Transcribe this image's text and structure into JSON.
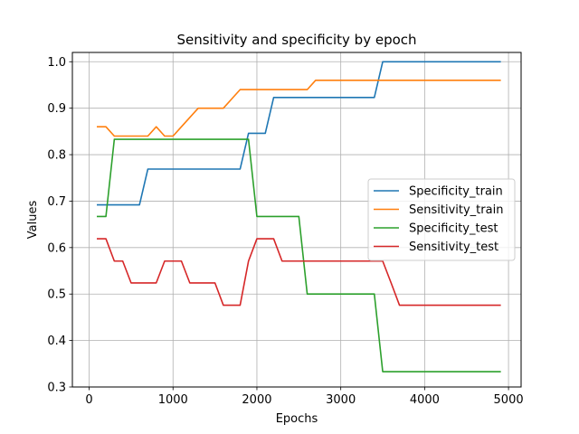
{
  "chart_data": {
    "type": "line",
    "title": "Sensitivity and specificity by epoch",
    "xlabel": "Epochs",
    "ylabel": "Values",
    "xlim": [
      -200,
      5150
    ],
    "ylim": [
      0.3,
      1.02
    ],
    "xticks": [
      0,
      1000,
      2000,
      3000,
      4000,
      5000
    ],
    "yticks": [
      0.3,
      0.4,
      0.5,
      0.6,
      0.7,
      0.8,
      0.9,
      1.0
    ],
    "xtick_labels": [
      "0",
      "1000",
      "2000",
      "3000",
      "4000",
      "5000"
    ],
    "ytick_labels": [
      "0.3",
      "0.4",
      "0.5",
      "0.6",
      "0.7",
      "0.8",
      "0.9",
      "1.0"
    ],
    "grid": true,
    "legend_position": "center-right",
    "x": [
      100,
      200,
      300,
      400,
      500,
      600,
      700,
      800,
      900,
      1000,
      1100,
      1200,
      1300,
      1400,
      1500,
      1600,
      1700,
      1800,
      1900,
      2000,
      2100,
      2200,
      2300,
      2400,
      2500,
      2600,
      2700,
      2800,
      2900,
      3000,
      3100,
      3200,
      3300,
      3400,
      3500,
      3600,
      3700,
      3800,
      3900,
      4000,
      4100,
      4200,
      4300,
      4400,
      4500,
      4600,
      4700,
      4800,
      4900
    ],
    "series": [
      {
        "name": "Specificity_train",
        "color": "#1f77b4",
        "values": [
          0.692,
          0.692,
          0.692,
          0.692,
          0.692,
          0.692,
          0.769,
          0.769,
          0.769,
          0.769,
          0.769,
          0.769,
          0.769,
          0.769,
          0.769,
          0.769,
          0.769,
          0.769,
          0.846,
          0.846,
          0.846,
          0.923,
          0.923,
          0.923,
          0.923,
          0.923,
          0.923,
          0.923,
          0.923,
          0.923,
          0.923,
          0.923,
          0.923,
          0.923,
          1.0,
          1.0,
          1.0,
          1.0,
          1.0,
          1.0,
          1.0,
          1.0,
          1.0,
          1.0,
          1.0,
          1.0,
          1.0,
          1.0,
          1.0
        ]
      },
      {
        "name": "Sensitivity_train",
        "color": "#ff7f0e",
        "values": [
          0.86,
          0.86,
          0.84,
          0.84,
          0.84,
          0.84,
          0.84,
          0.86,
          0.84,
          0.84,
          0.86,
          0.88,
          0.9,
          0.9,
          0.9,
          0.9,
          0.92,
          0.94,
          0.94,
          0.94,
          0.94,
          0.94,
          0.94,
          0.94,
          0.94,
          0.94,
          0.96,
          0.96,
          0.96,
          0.96,
          0.96,
          0.96,
          0.96,
          0.96,
          0.96,
          0.96,
          0.96,
          0.96,
          0.96,
          0.96,
          0.96,
          0.96,
          0.96,
          0.96,
          0.96,
          0.96,
          0.96,
          0.96,
          0.96
        ]
      },
      {
        "name": "Specificity_test",
        "color": "#2ca02c",
        "values": [
          0.667,
          0.667,
          0.833,
          0.833,
          0.833,
          0.833,
          0.833,
          0.833,
          0.833,
          0.833,
          0.833,
          0.833,
          0.833,
          0.833,
          0.833,
          0.833,
          0.833,
          0.833,
          0.833,
          0.667,
          0.667,
          0.667,
          0.667,
          0.667,
          0.667,
          0.5,
          0.5,
          0.5,
          0.5,
          0.5,
          0.5,
          0.5,
          0.5,
          0.5,
          0.333,
          0.333,
          0.333,
          0.333,
          0.333,
          0.333,
          0.333,
          0.333,
          0.333,
          0.333,
          0.333,
          0.333,
          0.333,
          0.333,
          0.333
        ]
      },
      {
        "name": "Sensitivity_test",
        "color": "#d62728",
        "values": [
          0.619,
          0.619,
          0.571,
          0.571,
          0.524,
          0.524,
          0.524,
          0.524,
          0.571,
          0.571,
          0.571,
          0.524,
          0.524,
          0.524,
          0.524,
          0.476,
          0.476,
          0.476,
          0.571,
          0.619,
          0.619,
          0.619,
          0.571,
          0.571,
          0.571,
          0.571,
          0.571,
          0.571,
          0.571,
          0.571,
          0.571,
          0.571,
          0.571,
          0.571,
          0.571,
          0.524,
          0.476,
          0.476,
          0.476,
          0.476,
          0.476,
          0.476,
          0.476,
          0.476,
          0.476,
          0.476,
          0.476,
          0.476,
          0.476
        ]
      }
    ]
  }
}
